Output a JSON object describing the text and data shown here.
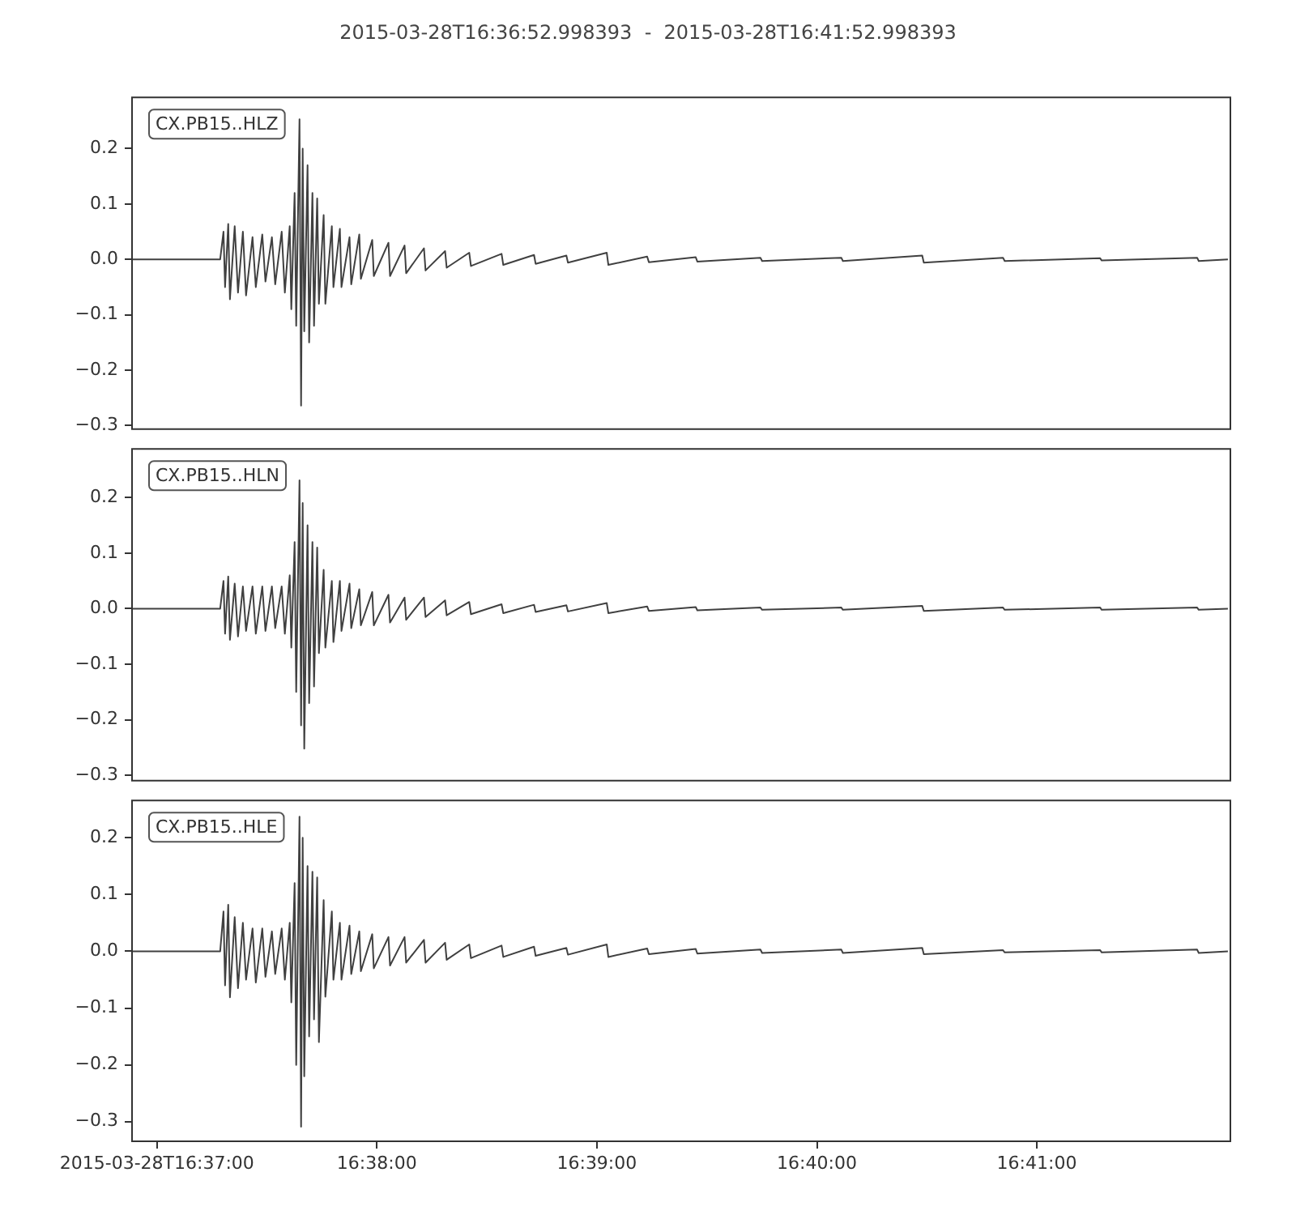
{
  "chart_data": [
    {
      "type": "line",
      "title": "2015-03-28T16:36:52.998393  -  2015-03-28T16:41:52.998393",
      "annotations": [
        "CX.PB15..HLZ"
      ],
      "tick_labels": "y",
      "x": [
        16.61472,
        16.62146,
        16.62171,
        16.62183,
        16.62207,
        16.6222,
        16.62256,
        16.62281,
        16.62318,
        16.62342,
        16.62391,
        16.62416,
        16.62465,
        16.62489,
        16.62538,
        16.62563,
        16.62612,
        16.62636,
        16.62673,
        16.62685,
        16.6271,
        16.62722,
        16.62747,
        16.62759,
        16.62771,
        16.62783,
        16.62808,
        16.6282,
        16.62845,
        16.62857,
        16.62881,
        16.62894,
        16.6293,
        16.62943,
        16.62992,
        16.63004,
        16.63053,
        16.63065,
        16.63126,
        16.63139,
        16.632,
        16.63212,
        16.63298,
        16.6331,
        16.63421,
        16.63433,
        16.63543,
        16.63555,
        16.6369,
        16.63702,
        16.6385,
        16.63862,
        16.64033,
        16.64046,
        16.64278,
        16.64291,
        16.64524,
        16.64536,
        16.64769,
        16.64781,
        16.65075,
        16.65087,
        16.65381,
        16.65394,
        16.65749,
        16.65761,
        16.66239,
        16.66252,
        16.66852,
        16.66864,
        16.67465,
        16.67477,
        16.68077,
        16.6809,
        16.68813,
        16.68825,
        16.69548,
        16.6956,
        16.69781
      ],
      "series": [
        {
          "color": "#404040",
          "values": [
            0,
            0,
            0.05,
            -0.05,
            0.064,
            -0.072,
            0.06,
            -0.06,
            0.05,
            -0.065,
            0.04,
            -0.05,
            0.045,
            -0.04,
            0.04,
            -0.045,
            0.05,
            -0.06,
            0.06,
            -0.09,
            0.12,
            -0.12,
            0.253,
            -0.264,
            0.2,
            -0.13,
            0.17,
            -0.15,
            0.12,
            -0.12,
            0.11,
            -0.08,
            0.08,
            -0.08,
            0.06,
            -0.05,
            0.055,
            -0.05,
            0.04,
            -0.045,
            0.045,
            -0.035,
            0.035,
            -0.03,
            0.03,
            -0.03,
            0.025,
            -0.025,
            0.02,
            -0.02,
            0.015,
            -0.015,
            0.012,
            -0.012,
            0.01,
            -0.01,
            0.008,
            -0.008,
            0.007,
            -0.006,
            0.012,
            -0.01,
            0.005,
            -0.005,
            0.004,
            -0.004,
            0.003,
            -0.003,
            0.003,
            -0.003,
            0.007,
            -0.006,
            0.003,
            -0.003,
            0.002,
            -0.002,
            0.003,
            -0.003,
            0
          ]
        }
      ],
      "xlim": [
        16.61472,
        16.69806
      ],
      "ylim": [
        -0.308,
        0.294
      ],
      "yticks": [
        {
          "value": -0.3,
          "label": "−0.3"
        },
        {
          "value": -0.2,
          "label": "−0.2"
        },
        {
          "value": -0.1,
          "label": "−0.1"
        },
        {
          "value": 0,
          "label": "0.0"
        },
        {
          "value": 0.1,
          "label": "0.1"
        },
        {
          "value": 0.2,
          "label": "0.2"
        }
      ]
    },
    {
      "type": "line",
      "annotations": [
        "CX.PB15..HLN"
      ],
      "tick_labels": "y",
      "x": [
        16.61472,
        16.62146,
        16.62171,
        16.62183,
        16.62207,
        16.6222,
        16.62256,
        16.62281,
        16.62318,
        16.62342,
        16.62391,
        16.62416,
        16.62465,
        16.62489,
        16.62538,
        16.62563,
        16.62612,
        16.62636,
        16.62673,
        16.62685,
        16.6271,
        16.62722,
        16.62747,
        16.62759,
        16.62771,
        16.62783,
        16.62808,
        16.6282,
        16.62845,
        16.62857,
        16.62881,
        16.62894,
        16.6293,
        16.62943,
        16.62992,
        16.63004,
        16.63053,
        16.63065,
        16.63126,
        16.63139,
        16.632,
        16.63212,
        16.63298,
        16.6331,
        16.63421,
        16.63433,
        16.63543,
        16.63555,
        16.6369,
        16.63702,
        16.6385,
        16.63862,
        16.64033,
        16.64046,
        16.64278,
        16.64291,
        16.64524,
        16.64536,
        16.64769,
        16.64781,
        16.65075,
        16.65087,
        16.65381,
        16.65394,
        16.65749,
        16.65761,
        16.66239,
        16.66252,
        16.66852,
        16.66864,
        16.67465,
        16.67477,
        16.68077,
        16.6809,
        16.68813,
        16.68825,
        16.69548,
        16.6956,
        16.69781
      ],
      "series": [
        {
          "color": "#404040",
          "values": [
            0,
            0,
            0.05,
            -0.045,
            0.058,
            -0.056,
            0.045,
            -0.05,
            0.04,
            -0.04,
            0.04,
            -0.045,
            0.04,
            -0.04,
            0.04,
            -0.035,
            0.04,
            -0.045,
            0.06,
            -0.07,
            0.12,
            -0.15,
            0.231,
            -0.21,
            0.19,
            -0.252,
            0.15,
            -0.17,
            0.12,
            -0.14,
            0.11,
            -0.08,
            0.07,
            -0.07,
            0.05,
            -0.06,
            0.05,
            -0.04,
            0.045,
            -0.035,
            0.035,
            -0.03,
            0.03,
            -0.03,
            0.025,
            -0.025,
            0.02,
            -0.02,
            0.02,
            -0.015,
            0.015,
            -0.012,
            0.012,
            -0.01,
            0.008,
            -0.008,
            0.007,
            -0.006,
            0.006,
            -0.005,
            0.01,
            -0.008,
            0.004,
            -0.004,
            0.003,
            -0.003,
            0.002,
            -0.002,
            0.002,
            -0.002,
            0.005,
            -0.004,
            0.002,
            -0.002,
            0.002,
            -0.002,
            0.002,
            -0.002,
            0
          ]
        }
      ],
      "xlim": [
        16.61472,
        16.69806
      ],
      "ylim": [
        -0.311,
        0.289
      ],
      "yticks": [
        {
          "value": -0.3,
          "label": "−0.3"
        },
        {
          "value": -0.2,
          "label": "−0.2"
        },
        {
          "value": -0.1,
          "label": "−0.1"
        },
        {
          "value": 0,
          "label": "0.0"
        },
        {
          "value": 0.1,
          "label": "0.1"
        },
        {
          "value": 0.2,
          "label": "0.2"
        }
      ]
    },
    {
      "type": "line",
      "annotations": [
        "CX.PB15..HLE"
      ],
      "x": [
        16.61472,
        16.62146,
        16.62171,
        16.62183,
        16.62207,
        16.6222,
        16.62256,
        16.62281,
        16.62318,
        16.62342,
        16.62391,
        16.62416,
        16.62465,
        16.62489,
        16.62538,
        16.62563,
        16.62612,
        16.62636,
        16.62673,
        16.62685,
        16.6271,
        16.62722,
        16.62747,
        16.62759,
        16.62771,
        16.62783,
        16.62808,
        16.6282,
        16.62845,
        16.62857,
        16.62881,
        16.62894,
        16.6293,
        16.62943,
        16.62992,
        16.63004,
        16.63053,
        16.63065,
        16.63126,
        16.63139,
        16.632,
        16.63212,
        16.63298,
        16.6331,
        16.63421,
        16.63433,
        16.63543,
        16.63555,
        16.6369,
        16.63702,
        16.6385,
        16.63862,
        16.64033,
        16.64046,
        16.64278,
        16.64291,
        16.64524,
        16.64536,
        16.64769,
        16.64781,
        16.65075,
        16.65087,
        16.65381,
        16.65394,
        16.65749,
        16.65761,
        16.66239,
        16.66252,
        16.66852,
        16.66864,
        16.67465,
        16.67477,
        16.68077,
        16.6809,
        16.68813,
        16.68825,
        16.69548,
        16.6956,
        16.69781
      ],
      "series": [
        {
          "color": "#404040",
          "values": [
            0,
            0,
            0.07,
            -0.06,
            0.082,
            -0.081,
            0.06,
            -0.065,
            0.05,
            -0.05,
            0.04,
            -0.055,
            0.04,
            -0.045,
            0.035,
            -0.04,
            0.04,
            -0.05,
            0.05,
            -0.09,
            0.12,
            -0.2,
            0.237,
            -0.309,
            0.2,
            -0.22,
            0.15,
            -0.15,
            0.14,
            -0.12,
            0.13,
            -0.16,
            0.09,
            -0.08,
            0.07,
            -0.05,
            0.05,
            -0.05,
            0.045,
            -0.04,
            0.035,
            -0.035,
            0.03,
            -0.03,
            0.025,
            -0.025,
            0.025,
            -0.02,
            0.02,
            -0.02,
            0.015,
            -0.015,
            0.012,
            -0.012,
            0.01,
            -0.01,
            0.008,
            -0.008,
            0.006,
            -0.006,
            0.012,
            -0.01,
            0.005,
            -0.005,
            0.004,
            -0.004,
            0.003,
            -0.003,
            0.003,
            -0.003,
            0.006,
            -0.005,
            0.002,
            -0.002,
            0.002,
            -0.002,
            0.003,
            -0.003,
            0
          ]
        }
      ],
      "xlim": [
        16.61472,
        16.69806
      ],
      "xticks": [
        {
          "value": 16.61667,
          "label": "2015-03-28T16:37:00"
        },
        {
          "value": 16.63333,
          "label": "16:38:00"
        },
        {
          "value": 16.65,
          "label": "16:39:00"
        },
        {
          "value": 16.66667,
          "label": "16:40:00"
        },
        {
          "value": 16.68333,
          "label": "16:41:00"
        }
      ],
      "ylim": [
        -0.336,
        0.267
      ],
      "yticks": [
        {
          "value": -0.3,
          "label": "−0.3"
        },
        {
          "value": -0.2,
          "label": "−0.2"
        },
        {
          "value": -0.1,
          "label": "−0.1"
        },
        {
          "value": 0,
          "label": "0.0"
        },
        {
          "value": 0.1,
          "label": "0.1"
        },
        {
          "value": 0.2,
          "label": "0.2"
        }
      ]
    }
  ]
}
